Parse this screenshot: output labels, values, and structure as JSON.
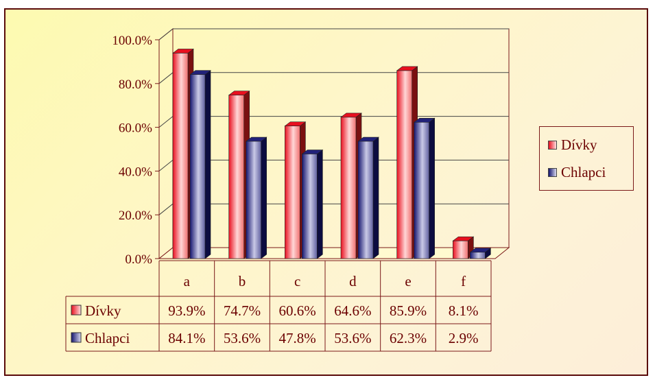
{
  "chart_data": {
    "type": "bar",
    "categories": [
      "a",
      "b",
      "c",
      "d",
      "e",
      "f"
    ],
    "series": [
      {
        "name": "Dívky",
        "values": [
          93.9,
          74.7,
          60.6,
          64.6,
          85.9,
          8.1
        ],
        "labels": [
          "93.9%",
          "74.7%",
          "60.6%",
          "64.6%",
          "85.9%",
          "8.1%"
        ],
        "color": "#e8102a"
      },
      {
        "name": "Chlapci",
        "values": [
          84.1,
          53.6,
          47.8,
          53.6,
          62.3,
          2.9
        ],
        "labels": [
          "84.1%",
          "53.6%",
          "47.8%",
          "53.6%",
          "62.3%",
          "2.9%"
        ],
        "color": "#1a1a7a"
      }
    ],
    "y_ticks": [
      "0.0%",
      "20.0%",
      "40.0%",
      "60.0%",
      "80.0%",
      "100.0%"
    ],
    "ylim": [
      0,
      100
    ],
    "grid": true,
    "legend": "right",
    "data_table": true
  }
}
